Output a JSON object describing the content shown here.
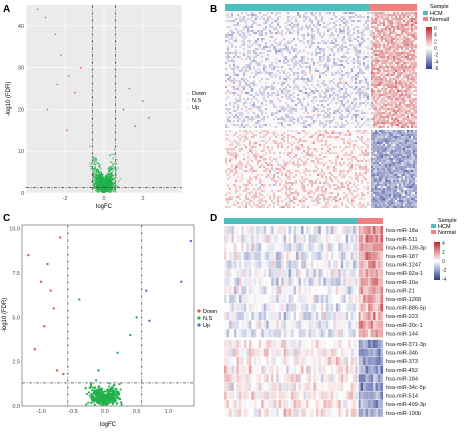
{
  "panels": {
    "A": {
      "letter": "A",
      "xlabel": "logFC",
      "ylabel": "-log10 (FDR)",
      "x_ticks": [
        "-2",
        "0",
        "2"
      ],
      "y_ticks": [
        "0",
        "10",
        "20",
        "30",
        "40"
      ],
      "legend": [
        "Down",
        "N.S",
        "Up"
      ]
    },
    "B": {
      "letter": "B",
      "legend_title": "Sample",
      "groups": [
        "HCM",
        "Normall"
      ],
      "scale_ticks": [
        "6",
        "4",
        "2",
        "0",
        "-2",
        "-4",
        "-6"
      ]
    },
    "C": {
      "letter": "C",
      "xlabel": "logFC",
      "ylabel": "-log10 (FDR)",
      "x_ticks": [
        "-1.0",
        "-0.5",
        "0.0",
        "0.5",
        "1.0"
      ],
      "y_ticks": [
        "0.0",
        "2.5",
        "5.0",
        "7.5",
        "10.0"
      ],
      "legend": [
        "Down",
        "N.S",
        "Up"
      ]
    },
    "D": {
      "letter": "D",
      "legend_title": "Sample",
      "groups": [
        "HCM",
        "Normal"
      ],
      "scale_ticks": [
        "4",
        "2",
        "0",
        "-2",
        "-4"
      ],
      "genes": [
        "hsa-miR-18a",
        "hsa-miR-511",
        "hsa-miR-139-3p",
        "hsa-miR-187",
        "hsa-miR-1247",
        "hsa-miR-92a-1",
        "hsa-miR-10a",
        "hsa-miR-21",
        "hsa-miR-1268",
        "hsa-miR-886-5p",
        "hsa-miR-223",
        "hsa-miR-30c-1",
        "hsa-miR-144",
        "hsa-miR-371-3p",
        "hsa-miR-34b",
        "hsa-miR-373",
        "hsa-miR-452",
        "hsa-miR-184",
        "hsa-miR-34c-5p",
        "hsa-miR-514",
        "hsa-miR-499-3p",
        "hsa-miR-190b"
      ]
    }
  },
  "colors": {
    "down": "#e8534a",
    "ns": "#22b14c",
    "up": "#4a6fd1",
    "hcm": "#4dbfbf",
    "normal": "#f08080",
    "high": "#c0252b",
    "low": "#2a3a8f"
  },
  "chart_data": [
    {
      "type": "scatter",
      "panel": "A",
      "xlabel": "logFC",
      "ylabel": "-log10 (FDR)",
      "xlim": [
        -4,
        4
      ],
      "ylim": [
        0,
        45
      ],
      "series": [
        {
          "name": "Down",
          "x": [
            -3.0,
            -2.5,
            -2.2,
            -1.8,
            -1.5,
            -1.2,
            -2.9,
            -3.4,
            -1.9,
            -2.4
          ],
          "y": [
            42,
            38,
            33,
            28,
            24,
            30,
            20,
            44,
            15,
            26
          ]
        },
        {
          "name": "N.S",
          "x": [
            -0.5,
            -0.3,
            0.0,
            0.2,
            0.4,
            -0.4,
            0.3
          ],
          "y": [
            2,
            5,
            1,
            3,
            6,
            8,
            9
          ]
        },
        {
          "name": "Up",
          "x": [
            1.0,
            1.3,
            1.6,
            2.0,
            2.3
          ],
          "y": [
            20,
            25,
            16,
            22,
            18
          ]
        }
      ],
      "hlines": [
        1.3
      ],
      "vlines": [
        -0.58,
        0.58
      ]
    },
    {
      "type": "scatter",
      "panel": "C",
      "xlabel": "logFC",
      "ylabel": "-log10 (FDR)",
      "xlim": [
        -1.3,
        1.4
      ],
      "ylim": [
        0,
        10.2
      ],
      "series": [
        {
          "name": "Down",
          "x": [
            -1.2,
            -1.0,
            -0.9,
            -0.85,
            -0.8,
            -0.95,
            -1.1,
            -0.7,
            -0.75,
            -0.65
          ],
          "y": [
            8.5,
            7.0,
            8.0,
            6.5,
            5.5,
            4.5,
            3.2,
            9.5,
            2.0,
            1.8
          ]
        },
        {
          "name": "N.S",
          "x": [
            -0.3,
            -0.1,
            0.0,
            0.2,
            0.4,
            0.5,
            -0.4
          ],
          "y": [
            1.0,
            2.0,
            0.5,
            3.0,
            4.0,
            5.0,
            6.0
          ]
        },
        {
          "name": "Up",
          "x": [
            0.65,
            0.7,
            1.2,
            1.35
          ],
          "y": [
            6.5,
            4.8,
            7.0,
            9.3
          ]
        }
      ],
      "hlines": [
        1.3
      ],
      "vlines": [
        -0.58,
        0.58
      ]
    }
  ]
}
